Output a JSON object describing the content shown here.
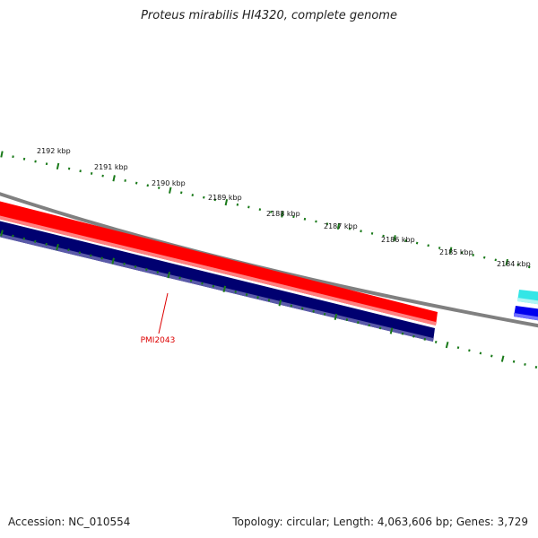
{
  "title": "Proteus mirabilis HI4320, complete genome",
  "accession": "Accession: NC_010554",
  "summary": "Topology: circular; Length: 4,063,606 bp; Genes: 3,729",
  "ruler_labels": [
    "2192 kbp",
    "2191 kbp",
    "2190 kbp",
    "2189 kbp",
    "2188 kbp",
    "2187 kbp",
    "2186 kbp",
    "2185 kbp",
    "2184 kbp"
  ],
  "gene_label": "PMI2043",
  "colors": {
    "ticks": "#1a7a1a",
    "backbone": "#808080",
    "forward_gene": "#ff0000",
    "reverse_gene": "#000070",
    "other_forward": "#33e6e6",
    "other_reverse": "#0000ee",
    "label": "#dd0000"
  }
}
